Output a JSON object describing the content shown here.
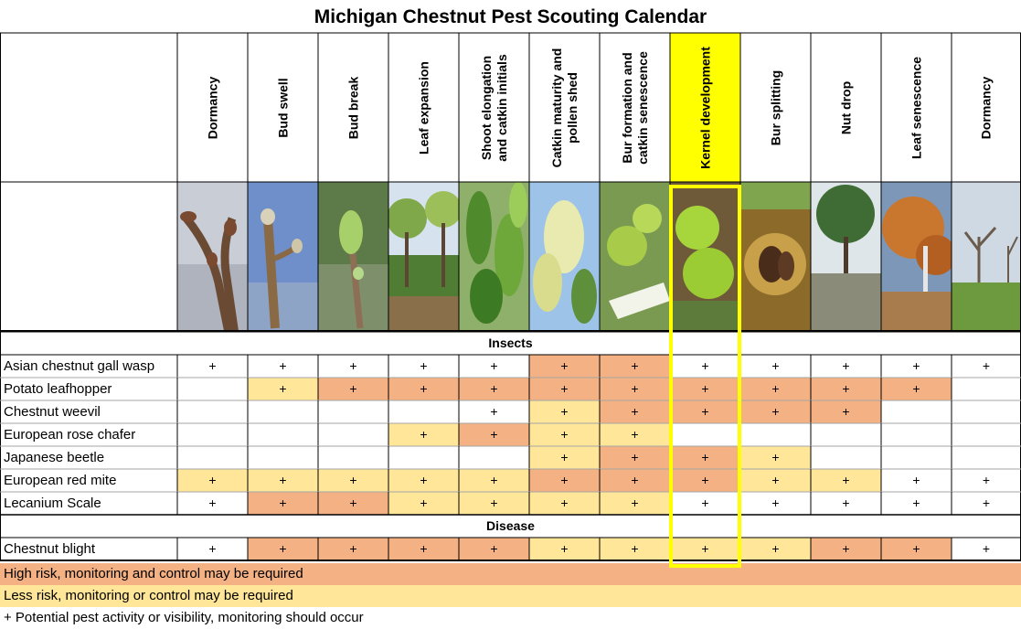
{
  "title": "Michigan Chestnut Pest Scouting Calendar",
  "colors": {
    "high": "#f4b183",
    "low": "#ffe699",
    "none": "#ffffff",
    "highlight": "#ffff00"
  },
  "stages": [
    "Dormancy",
    "Bud swell",
    "Bud break",
    "Leaf expansion",
    "Shoot elongation\nand catkin initials",
    "Catkin maturity and\npollen shed",
    "Bur formation and\ncatkin senescence",
    "Kernel development",
    "Bur splitting",
    "Nut drop",
    "Leaf senescence",
    "Dormancy"
  ],
  "photos": [
    "chestnut dormant twig",
    "chestnut swelling bud",
    "chestnut bud break",
    "orchard leaf expansion",
    "chestnut shoot leaves",
    "chestnut catkins",
    "young burs with catkins",
    "green spiny burs",
    "split bur with nuts",
    "orchard nut drop",
    "autumn leaf senescence",
    "winter dormant orchard"
  ],
  "highlighted_stage": "Kernel development",
  "sections": [
    {
      "label": "Insects",
      "rows": [
        {
          "name": "Asian chestnut gall wasp",
          "cells": [
            "+N",
            "+N",
            "+N",
            "+N",
            "+N",
            "+H",
            "+H",
            "+N",
            "+N",
            "+N",
            "+N",
            "+N"
          ]
        },
        {
          "name": "Potato leafhopper",
          "cells": [
            "",
            "+L",
            "+H",
            "+H",
            "+H",
            "+H",
            "+H",
            "+H",
            "+H",
            "+H",
            "+H",
            ""
          ]
        },
        {
          "name": "Chestnut weevil",
          "cells": [
            "",
            "",
            "",
            "",
            "+N",
            "+L",
            "+H",
            "+H",
            "+H",
            "+H",
            "",
            ""
          ]
        },
        {
          "name": "European rose chafer",
          "cells": [
            "",
            "",
            "",
            "+L",
            "+H",
            "+L",
            "+L",
            "",
            "",
            "",
            "",
            ""
          ]
        },
        {
          "name": "Japanese beetle",
          "cells": [
            "",
            "",
            "",
            "",
            "",
            "+L",
            "+H",
            "+H",
            "+L",
            "",
            "",
            ""
          ]
        },
        {
          "name": "European red mite",
          "cells": [
            "+L",
            "+L",
            "+L",
            "+L",
            "+L",
            "+H",
            "+H",
            "+H",
            "+L",
            "+L",
            "+N",
            "+N"
          ]
        },
        {
          "name": "Lecanium Scale",
          "cells": [
            "+N",
            "+H",
            "+H",
            "+L",
            "+L",
            "+L",
            "+L",
            "+N",
            "+N",
            "+N",
            "+N",
            "+N"
          ]
        }
      ]
    },
    {
      "label": "Disease",
      "rows": [
        {
          "name": "Chestnut blight",
          "cells": [
            "+N",
            "+H",
            "+H",
            "+H",
            "+H",
            "+L",
            "+L",
            "+L",
            "+L",
            "+H",
            "+H",
            "+N"
          ]
        }
      ]
    }
  ],
  "legend": [
    {
      "text": "High risk, monitoring and control may be required",
      "color": "#f4b183"
    },
    {
      "text": "Less risk, monitoring or control may be required",
      "color": "#ffe699"
    },
    {
      "text": "+ Potential pest activity or visibility, monitoring should occur",
      "color": "#ffffff"
    }
  ]
}
